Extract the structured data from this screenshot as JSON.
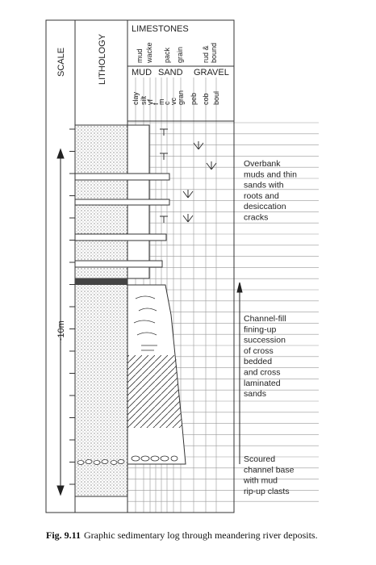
{
  "header": {
    "scale": "SCALE",
    "lithology": "LITHOLOGY",
    "limestones": "LIMESTONES",
    "limestone_columns": [
      "mud",
      "wacke",
      "pack",
      "grain",
      "rud &",
      "bound"
    ],
    "clastic_groups": [
      "MUD",
      "SAND",
      "GRAVEL"
    ],
    "grain_sizes": [
      "clay",
      "silt",
      "vf",
      "f",
      "m",
      "c",
      "vc",
      "gran",
      "peb",
      "cob",
      "boul"
    ]
  },
  "scale_label": "~10m",
  "annotations": [
    {
      "lines": [
        "Overbank",
        "muds and thin",
        "sands with",
        "roots and",
        "desiccation",
        "cracks"
      ]
    },
    {
      "lines": [
        "Channel-fill",
        "fining-up",
        "succession",
        "of cross",
        "bedded",
        "and cross",
        "laminated",
        "sands"
      ]
    },
    {
      "lines": [
        "Scoured",
        "channel base",
        "with mud",
        "rip-up clasts"
      ]
    }
  ],
  "caption": {
    "label": "Fig. 9.11",
    "text": "Graphic sedimentary log through meandering river deposits."
  }
}
